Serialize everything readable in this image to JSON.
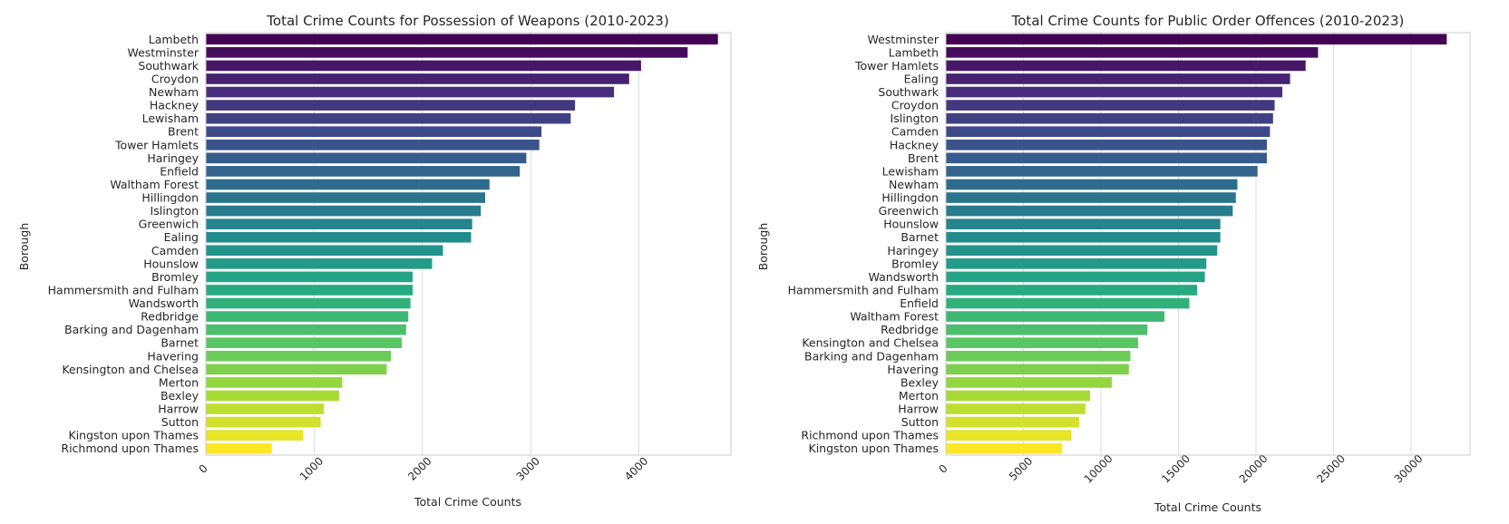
{
  "chart_data": [
    {
      "type": "bar",
      "orientation": "horizontal",
      "title": "Total Crime Counts for Possession of Weapons (2010-2023)",
      "xlabel": "Total Crime Counts",
      "ylabel": "Borough",
      "xlim": [
        0,
        4850
      ],
      "xticks": [
        "0",
        "1000",
        "2000",
        "3000",
        "4000"
      ],
      "xtick_values": [
        0,
        1000,
        2000,
        3000,
        4000
      ],
      "grid": "vertical",
      "colormap": "viridis",
      "categories": [
        "Lambeth",
        "Westminster",
        "Southwark",
        "Croydon",
        "Newham",
        "Hackney",
        "Lewisham",
        "Brent",
        "Tower Hamlets",
        "Haringey",
        "Enfield",
        "Waltham Forest",
        "Hillingdon",
        "Islington",
        "Greenwich",
        "Ealing",
        "Camden",
        "Hounslow",
        "Bromley",
        "Hammersmith and Fulham",
        "Wandsworth",
        "Redbridge",
        "Barking and Dagenham",
        "Barnet",
        "Havering",
        "Kensington and Chelsea",
        "Merton",
        "Bexley",
        "Harrow",
        "Sutton",
        "Kingston upon Thames",
        "Richmond upon Thames"
      ],
      "values": [
        4730,
        4450,
        4020,
        3910,
        3770,
        3410,
        3370,
        3100,
        3080,
        2960,
        2900,
        2620,
        2580,
        2540,
        2460,
        2450,
        2190,
        2090,
        1910,
        1910,
        1890,
        1870,
        1850,
        1810,
        1710,
        1670,
        1260,
        1230,
        1090,
        1060,
        900,
        610
      ]
    },
    {
      "type": "bar",
      "orientation": "horizontal",
      "title": "Total Crime Counts for Public Order Offences (2010-2023)",
      "xlabel": "Total Crime Counts",
      "ylabel": "Borough",
      "xlim": [
        0,
        33800
      ],
      "xticks": [
        "0",
        "5000",
        "10000",
        "15000",
        "20000",
        "25000",
        "30000"
      ],
      "xtick_values": [
        0,
        5000,
        10000,
        15000,
        20000,
        25000,
        30000
      ],
      "grid": "vertical",
      "colormap": "viridis",
      "categories": [
        "Westminster",
        "Lambeth",
        "Tower Hamlets",
        "Ealing",
        "Southwark",
        "Croydon",
        "Islington",
        "Camden",
        "Hackney",
        "Brent",
        "Lewisham",
        "Newham",
        "Hillingdon",
        "Greenwich",
        "Hounslow",
        "Barnet",
        "Haringey",
        "Bromley",
        "Wandsworth",
        "Hammersmith and Fulham",
        "Enfield",
        "Waltham Forest",
        "Redbridge",
        "Kensington and Chelsea",
        "Barking and Dagenham",
        "Havering",
        "Bexley",
        "Merton",
        "Harrow",
        "Sutton",
        "Richmond upon Thames",
        "Kingston upon Thames"
      ],
      "values": [
        32300,
        24000,
        23200,
        22200,
        21700,
        21200,
        21100,
        20900,
        20700,
        20700,
        20100,
        18800,
        18700,
        18500,
        17700,
        17700,
        17500,
        16800,
        16700,
        16200,
        15700,
        14100,
        13000,
        12400,
        11900,
        11800,
        10700,
        9300,
        9000,
        8600,
        8100,
        7500
      ]
    }
  ]
}
